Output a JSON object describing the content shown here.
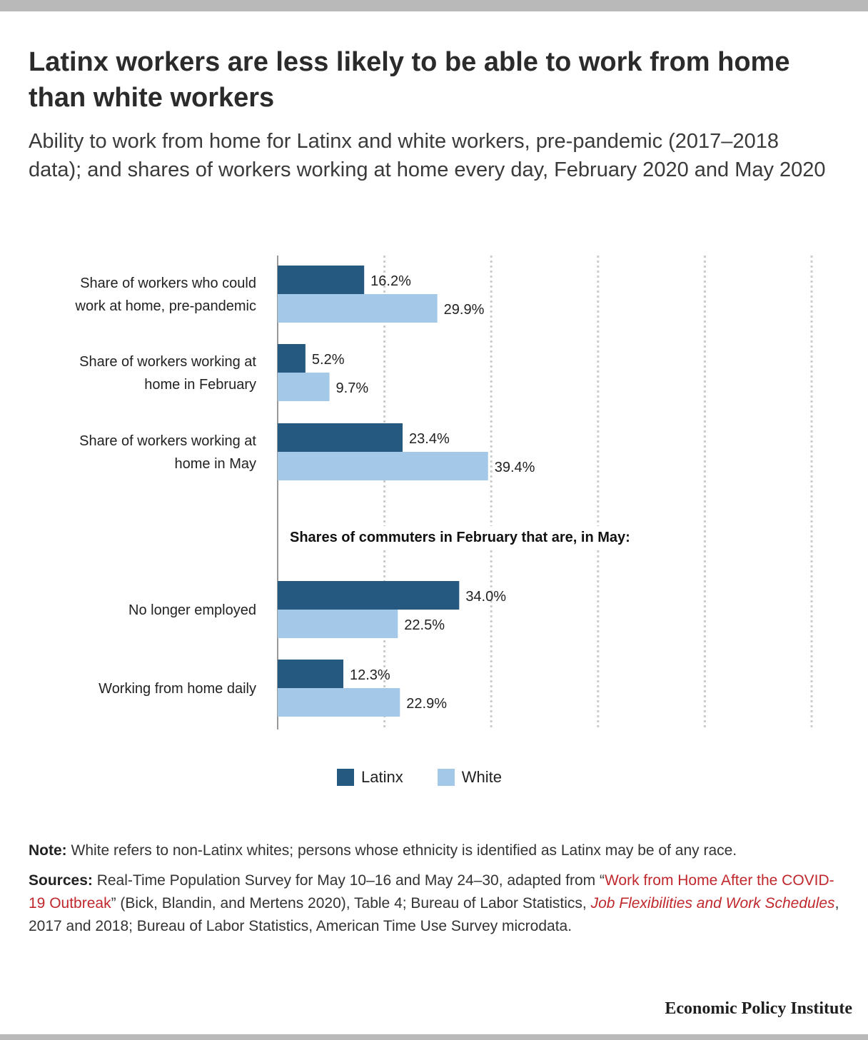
{
  "title": "Latinx workers are less likely to be able to work from home than white workers",
  "subtitle": "Ability to work from home for Latinx and white workers, pre-pandemic (2017–2018 data); and shares of workers working at home every day, February 2020 and May 2020",
  "colors": {
    "latinx": "#26597f",
    "white": "#a3c8e8",
    "grid": "#cccccc",
    "axis": "#999999",
    "link": "#c0282d"
  },
  "chart_data": {
    "type": "bar",
    "orientation": "horizontal",
    "xlim": [
      0,
      100
    ],
    "grid": true,
    "section_heading": "Shares of commuters in February that are, in May:",
    "categories": [
      [
        "Share of workers who could",
        "work at home, pre-pandemic"
      ],
      [
        "Share of workers working at",
        "home in February"
      ],
      [
        "Share of workers working at",
        "home in May"
      ],
      [
        "No longer employed"
      ],
      [
        "Working from home daily"
      ]
    ],
    "series": [
      {
        "name": "Latinx",
        "values": [
          16.2,
          5.2,
          23.4,
          34.0,
          12.3
        ],
        "labels": [
          "16.2%",
          "5.2%",
          "23.4%",
          "34.0%",
          "12.3%"
        ]
      },
      {
        "name": "White",
        "values": [
          29.9,
          9.7,
          39.4,
          22.5,
          22.9
        ],
        "labels": [
          "29.9%",
          "9.7%",
          "39.4%",
          "22.5%",
          "22.9%"
        ]
      }
    ],
    "legend_position": "bottom"
  },
  "notes": {
    "note_label": "Note:",
    "note_text": " White refers to non-Latinx whites; persons whose ethnicity is identified as Latinx may be of any race.",
    "sources_label": "Sources:",
    "sources_part1": " Real-Time Population Survey for May 10–16 and May 24–30, adapted from “",
    "sources_link1": "Work from Home After the COVID-19 Outbreak",
    "sources_part2": "” (Bick, Blandin, and Mertens 2020), Table 4; Bureau of Labor Statistics, ",
    "sources_link2": "Job Flexibilities and Work Schedules",
    "sources_part3": ", 2017 and 2018; Bureau of Labor Statistics, American Time Use Survey microdata."
  },
  "logo": "Economic Policy Institute"
}
